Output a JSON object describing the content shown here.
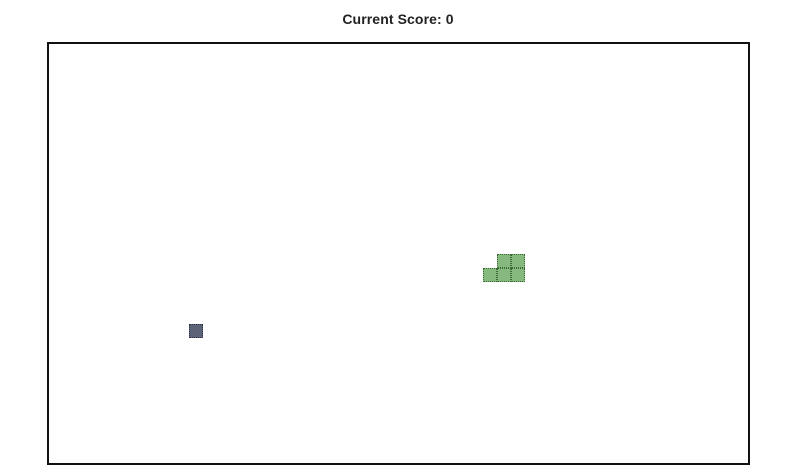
{
  "score": {
    "label": "Current Score: 0",
    "value": 0
  },
  "board": {
    "cols": 50,
    "rows": 30
  },
  "snake": {
    "segments": [
      {
        "col": 31,
        "row": 16
      },
      {
        "col": 32,
        "row": 16
      },
      {
        "col": 32,
        "row": 15
      },
      {
        "col": 33,
        "row": 15
      },
      {
        "col": 33,
        "row": 16
      }
    ],
    "color": "#86b97e"
  },
  "food": {
    "col": 10,
    "row": 20,
    "color": "#5d6477"
  }
}
